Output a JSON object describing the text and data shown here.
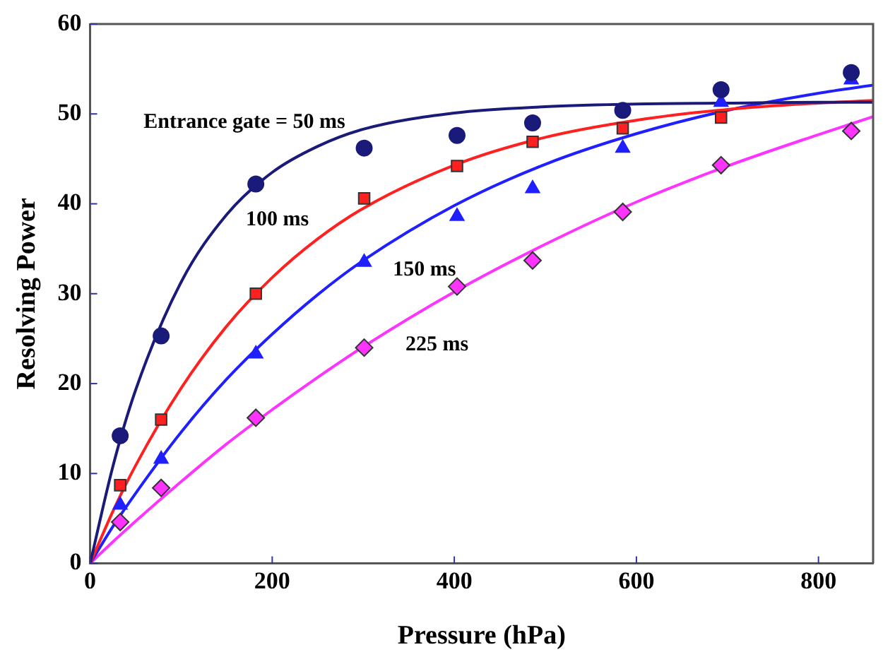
{
  "chart_data": {
    "type": "scatter",
    "xlabel": "Pressure (hPa)",
    "ylabel": "Resolving Power",
    "xlim": [
      0,
      860
    ],
    "xticks": [
      0,
      200,
      400,
      600,
      800
    ],
    "ylim": [
      0,
      60
    ],
    "yticks": [
      0,
      10,
      20,
      30,
      40,
      50,
      60
    ],
    "grid": false,
    "legend": false,
    "series": [
      {
        "type": "line",
        "name": "Entrance gate = 50 ms",
        "marker": "none",
        "color": "#1a1a7a",
        "x": [
          0,
          25,
          50,
          100,
          150,
          200,
          250,
          300,
          400,
          500,
          600,
          700,
          800,
          860
        ],
        "values": [
          0,
          10.8,
          19.3,
          31.3,
          38.8,
          43.5,
          46.4,
          48.3,
          50.1,
          50.8,
          51.1,
          51.2,
          51.3,
          51.3
        ]
      },
      {
        "type": "line",
        "name": "100 ms",
        "marker": "none",
        "color": "#ff2020",
        "x": [
          0,
          25,
          50,
          100,
          150,
          200,
          250,
          300,
          400,
          500,
          600,
          700,
          800,
          860
        ],
        "values": [
          0,
          5.8,
          10.9,
          19.5,
          26.4,
          31.8,
          36.1,
          39.5,
          44.3,
          47.4,
          49.3,
          50.5,
          51.2,
          51.5
        ]
      },
      {
        "type": "line",
        "name": "150 ms",
        "marker": "none",
        "color": "#1f1fff",
        "x": [
          0,
          25,
          50,
          100,
          150,
          200,
          250,
          300,
          400,
          500,
          600,
          700,
          800,
          860
        ],
        "values": [
          0,
          4.1,
          7.8,
          14.6,
          20.5,
          25.5,
          29.9,
          33.7,
          39.8,
          44.4,
          47.8,
          50.4,
          52.3,
          53.2
        ]
      },
      {
        "type": "line",
        "name": "225 ms",
        "marker": "none",
        "color": "#ff33ff",
        "x": [
          0,
          25,
          50,
          100,
          150,
          200,
          250,
          300,
          400,
          500,
          600,
          700,
          800,
          860
        ],
        "values": [
          0,
          2.4,
          4.7,
          9.1,
          13.3,
          17.1,
          20.7,
          24.1,
          30.2,
          35.5,
          40.2,
          44.2,
          47.7,
          49.7
        ]
      },
      {
        "type": "scatter",
        "marker": "circle",
        "color": "#1a1a7a",
        "x": [
          33,
          78,
          182,
          301,
          403,
          486,
          585,
          693,
          836
        ],
        "values": [
          14.2,
          25.3,
          42.2,
          46.2,
          47.6,
          49.0,
          50.4,
          52.7,
          54.6
        ]
      },
      {
        "type": "scatter",
        "marker": "square",
        "color": "#ff2020",
        "x": [
          33,
          78,
          182,
          301,
          403,
          486,
          585,
          693
        ],
        "values": [
          8.7,
          16.0,
          30.0,
          40.6,
          44.2,
          46.9,
          48.4,
          49.6
        ]
      },
      {
        "type": "scatter",
        "marker": "triangle",
        "color": "#1f1fff",
        "x": [
          33,
          78,
          182,
          301,
          403,
          486,
          585,
          693,
          836
        ],
        "values": [
          6.5,
          11.6,
          23.3,
          33.5,
          38.6,
          41.7,
          46.2,
          51.3,
          53.8
        ]
      },
      {
        "type": "scatter",
        "marker": "diamond",
        "color": "#ff33ff",
        "x": [
          33,
          78,
          182,
          301,
          403,
          486,
          585,
          693,
          836
        ],
        "values": [
          4.6,
          8.4,
          16.2,
          24.0,
          30.8,
          33.7,
          39.1,
          44.3,
          48.1
        ]
      }
    ]
  }
}
